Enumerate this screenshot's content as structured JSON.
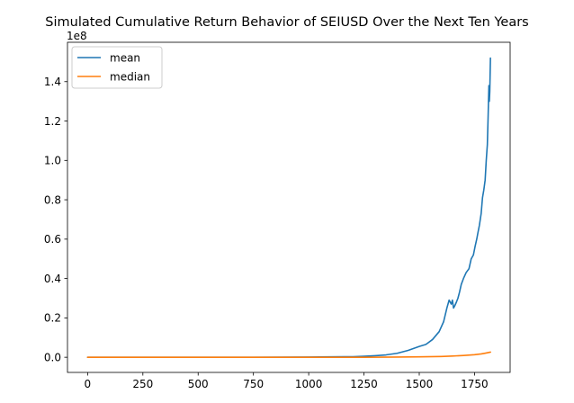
{
  "chart_data": {
    "type": "line",
    "title": "Simulated Cumulative Return Behavior of SEIUSD Over the Next Ten Years",
    "xlabel": "",
    "ylabel": "",
    "y_offset_label": "1e8",
    "xlim": [
      -91,
      1911
    ],
    "ylim": [
      -0.077,
      1.6
    ],
    "y_scale_multiplier": 100000000,
    "x_ticks": [
      0,
      250,
      500,
      750,
      1000,
      1250,
      1500,
      1750
    ],
    "x_tick_labels": [
      "0",
      "250",
      "500",
      "750",
      "1000",
      "1250",
      "1500",
      "1750"
    ],
    "y_ticks": [
      0.0,
      0.2,
      0.4,
      0.6,
      0.8,
      1.0,
      1.2,
      1.4
    ],
    "y_tick_labels": [
      "0.0",
      "0.2",
      "0.4",
      "0.6",
      "0.8",
      "1.0",
      "1.2",
      "1.4"
    ],
    "grid": false,
    "legend_position": "upper-left",
    "series": [
      {
        "name": "mean",
        "color": "#1f77b4",
        "x": [
          0,
          250,
          500,
          750,
          1000,
          1100,
          1200,
          1250,
          1300,
          1350,
          1400,
          1450,
          1500,
          1530,
          1560,
          1590,
          1610,
          1625,
          1635,
          1645,
          1650,
          1655,
          1660,
          1668,
          1675,
          1682,
          1690,
          1700,
          1712,
          1725,
          1735,
          1745,
          1752,
          1760,
          1765,
          1772,
          1780,
          1786,
          1792,
          1798,
          1803,
          1808,
          1811,
          1815,
          1817,
          1819,
          1822
        ],
        "y": [
          0.0,
          0.0,
          0.0,
          0.0,
          0.001,
          0.002,
          0.003,
          0.005,
          0.008,
          0.012,
          0.02,
          0.035,
          0.055,
          0.065,
          0.09,
          0.13,
          0.18,
          0.25,
          0.29,
          0.27,
          0.29,
          0.25,
          0.26,
          0.28,
          0.3,
          0.33,
          0.37,
          0.4,
          0.43,
          0.45,
          0.5,
          0.52,
          0.56,
          0.6,
          0.63,
          0.67,
          0.73,
          0.81,
          0.85,
          0.9,
          1.0,
          1.08,
          1.2,
          1.38,
          1.3,
          1.35,
          1.52
        ]
      },
      {
        "name": "median",
        "color": "#ff7f0e",
        "x": [
          0,
          250,
          500,
          750,
          1000,
          1250,
          1400,
          1500,
          1600,
          1650,
          1700,
          1750,
          1780,
          1800,
          1822
        ],
        "y": [
          0.0,
          0.0,
          0.0,
          0.0,
          0.0,
          0.0,
          0.001,
          0.002,
          0.004,
          0.006,
          0.009,
          0.013,
          0.017,
          0.021,
          0.026
        ]
      }
    ]
  }
}
